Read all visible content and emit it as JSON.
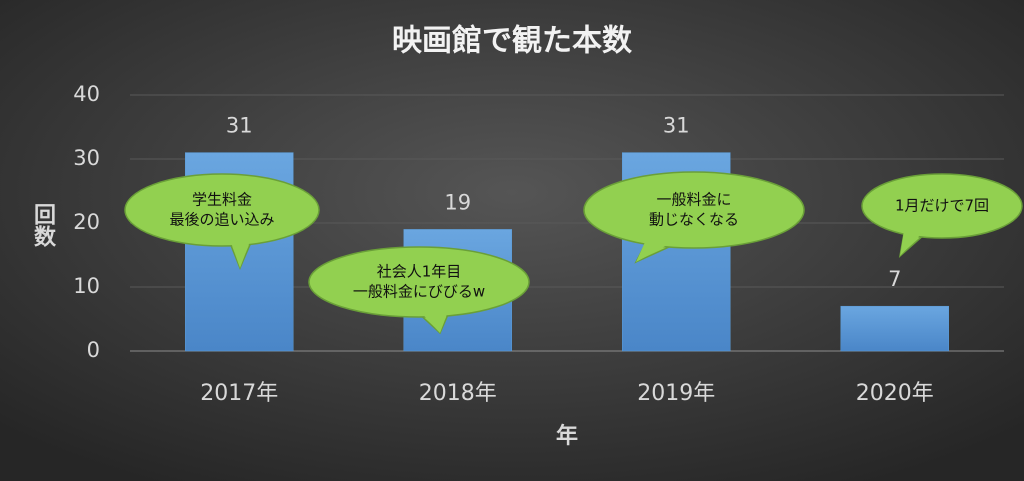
{
  "chart_data": {
    "type": "bar",
    "title": "映画館で観た本数",
    "x_label": "年",
    "y_label": "回数",
    "categories": [
      "2017年",
      "2018年",
      "2019年",
      "2020年"
    ],
    "values": [
      31,
      19,
      31,
      7
    ],
    "color": "#5b9bd5",
    "ylim": [
      0,
      40
    ],
    "yticks": [
      0,
      10,
      20,
      30,
      40
    ],
    "grid": true,
    "annotations": [
      {
        "lines": [
          "学生料金",
          "最後の追い込み"
        ]
      },
      {
        "lines": [
          "社会人1年目",
          "一般料金にびびるw"
        ]
      },
      {
        "lines": [
          "一般料金に",
          "動じなくなる"
        ]
      },
      {
        "lines": [
          "1月だけで7回"
        ]
      }
    ]
  }
}
